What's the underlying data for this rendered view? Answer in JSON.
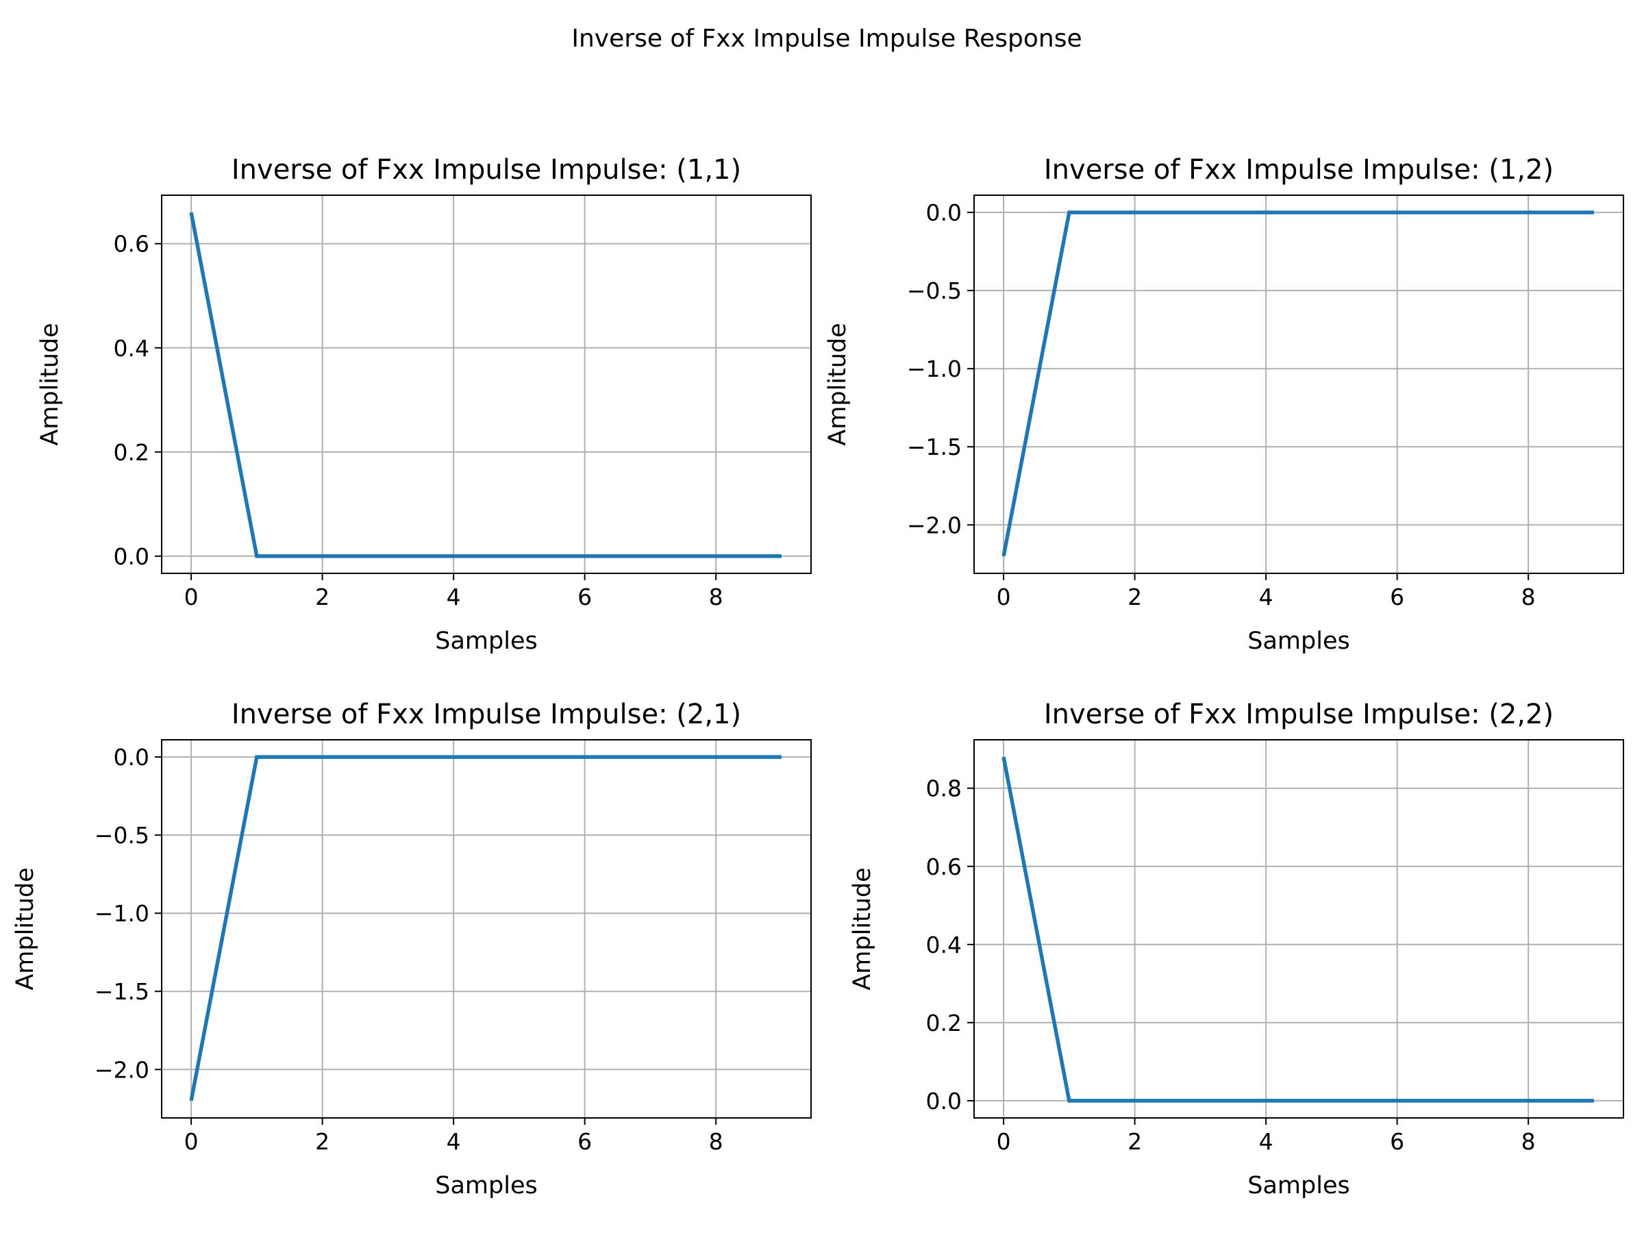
{
  "figure": {
    "title": "Inverse of Fxx Impulse Impulse Response"
  },
  "style": {
    "line_color": "#1f77b4",
    "grid_color": "#b0b0b0",
    "axes_color": "#000000"
  },
  "chart_data": [
    {
      "type": "line",
      "title": "Inverse of Fxx Impulse Impulse: (1,1)",
      "xlabel": "Samples",
      "ylabel": "Amplitude",
      "xlim": [
        -0.45,
        9.45
      ],
      "ylim": [
        -0.033,
        0.693
      ],
      "xticks": [
        0,
        2,
        4,
        6,
        8
      ],
      "xtick_labels": [
        "0",
        "2",
        "4",
        "6",
        "8"
      ],
      "yticks": [
        0.0,
        0.2,
        0.4,
        0.6
      ],
      "ytick_labels": [
        "0.0",
        "0.2",
        "0.4",
        "0.6"
      ],
      "grid": true,
      "x": [
        0,
        1,
        2,
        3,
        4,
        5,
        6,
        7,
        8,
        9
      ],
      "series": [
        {
          "values": [
            0.66,
            0,
            0,
            0,
            0,
            0,
            0,
            0,
            0,
            0
          ]
        }
      ]
    },
    {
      "type": "line",
      "title": "Inverse of Fxx Impulse Impulse: (1,2)",
      "xlabel": "Samples",
      "ylabel": "Amplitude",
      "xlim": [
        -0.45,
        9.45
      ],
      "ylim": [
        -2.31,
        0.11
      ],
      "xticks": [
        0,
        2,
        4,
        6,
        8
      ],
      "xtick_labels": [
        "0",
        "2",
        "4",
        "6",
        "8"
      ],
      "yticks": [
        -2.0,
        -1.5,
        -1.0,
        -0.5,
        0.0
      ],
      "ytick_labels": [
        "−2.0",
        "−1.5",
        "−1.0",
        "−0.5",
        "0.0"
      ],
      "grid": true,
      "x": [
        0,
        1,
        2,
        3,
        4,
        5,
        6,
        7,
        8,
        9
      ],
      "series": [
        {
          "values": [
            -2.2,
            0,
            0,
            0,
            0,
            0,
            0,
            0,
            0,
            0
          ]
        }
      ]
    },
    {
      "type": "line",
      "title": "Inverse of Fxx Impulse Impulse: (2,1)",
      "xlabel": "Samples",
      "ylabel": "Amplitude",
      "xlim": [
        -0.45,
        9.45
      ],
      "ylim": [
        -2.31,
        0.11
      ],
      "xticks": [
        0,
        2,
        4,
        6,
        8
      ],
      "xtick_labels": [
        "0",
        "2",
        "4",
        "6",
        "8"
      ],
      "yticks": [
        -2.0,
        -1.5,
        -1.0,
        -0.5,
        0.0
      ],
      "ytick_labels": [
        "−2.0",
        "−1.5",
        "−1.0",
        "−0.5",
        "0.0"
      ],
      "grid": true,
      "x": [
        0,
        1,
        2,
        3,
        4,
        5,
        6,
        7,
        8,
        9
      ],
      "series": [
        {
          "values": [
            -2.2,
            0,
            0,
            0,
            0,
            0,
            0,
            0,
            0,
            0
          ]
        }
      ]
    },
    {
      "type": "line",
      "title": "Inverse of Fxx Impulse Impulse: (2,2)",
      "xlabel": "Samples",
      "ylabel": "Amplitude",
      "xlim": [
        -0.45,
        9.45
      ],
      "ylim": [
        -0.044,
        0.924
      ],
      "xticks": [
        0,
        2,
        4,
        6,
        8
      ],
      "xtick_labels": [
        "0",
        "2",
        "4",
        "6",
        "8"
      ],
      "yticks": [
        0.0,
        0.2,
        0.4,
        0.6,
        0.8
      ],
      "ytick_labels": [
        "0.0",
        "0.2",
        "0.4",
        "0.6",
        "0.8"
      ],
      "grid": true,
      "x": [
        0,
        1,
        2,
        3,
        4,
        5,
        6,
        7,
        8,
        9
      ],
      "series": [
        {
          "values": [
            0.88,
            0,
            0,
            0,
            0,
            0,
            0,
            0,
            0,
            0
          ]
        }
      ]
    }
  ]
}
